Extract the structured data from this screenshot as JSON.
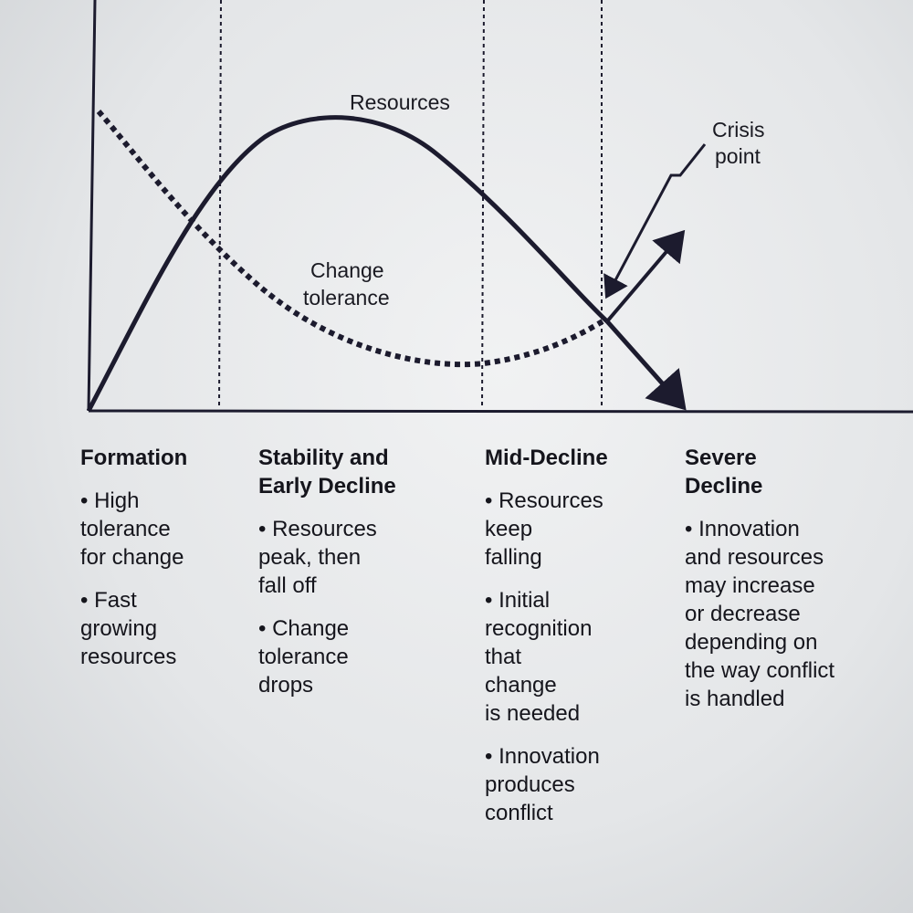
{
  "curves": {
    "resources_label": "Resources",
    "change_tolerance_label_line1": "Change",
    "change_tolerance_label_line2": "tolerance",
    "crisis_label_line1": "Crisis",
    "crisis_label_line2": "point"
  },
  "phases": [
    {
      "title_line1": "Formation",
      "title_line2": "",
      "bullets": [
        [
          "High",
          "tolerance",
          "for change"
        ],
        [
          "Fast",
          "growing",
          "resources"
        ]
      ]
    },
    {
      "title_line1": "Stability and",
      "title_line2": "Early Decline",
      "bullets": [
        [
          "Resources",
          "peak, then",
          "fall off"
        ],
        [
          "Change",
          "tolerance",
          "drops"
        ]
      ]
    },
    {
      "title_line1": "Mid-Decline",
      "title_line2": "",
      "bullets": [
        [
          "Resources",
          "keep",
          "falling"
        ],
        [
          "Initial",
          "recognition",
          "that",
          "change",
          "is needed"
        ],
        [
          "Innovation",
          "produces",
          "conflict"
        ]
      ]
    },
    {
      "title_line1": "Severe",
      "title_line2": "Decline",
      "bullets": [
        [
          "Innovation",
          "and resources",
          "may increase",
          "or decrease",
          "depending on",
          "the way conflict",
          "is handled"
        ]
      ]
    }
  ],
  "colors": {
    "ink": "#1c1b2e",
    "paper": "#ecedef"
  }
}
